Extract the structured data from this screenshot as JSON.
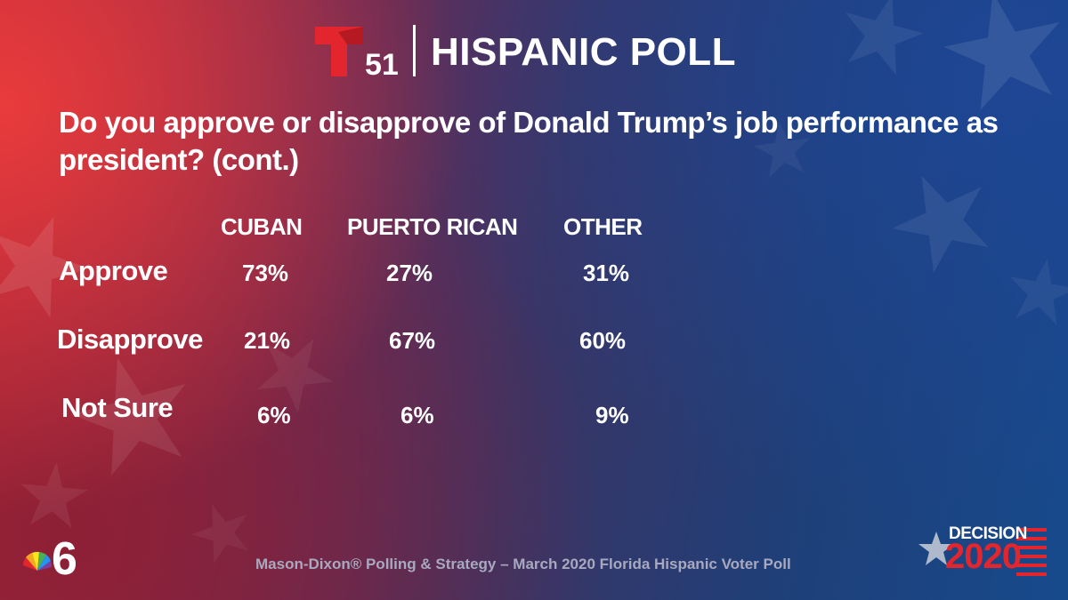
{
  "brand": {
    "channel_number": "51",
    "title": "HISPANIC POLL"
  },
  "question": "Do you approve or disapprove of Donald Trump’s job performance as president? (cont.)",
  "chart_data": {
    "type": "table",
    "title": "Do you approve or disapprove of Donald Trump’s job performance as president? (cont.)",
    "columns": [
      "CUBAN",
      "PUERTO RICAN",
      "OTHER"
    ],
    "rows": [
      {
        "label": "Approve",
        "values": [
          "73%",
          "27%",
          "31%"
        ]
      },
      {
        "label": "Disapprove",
        "values": [
          "21%",
          "67%",
          "60%"
        ]
      },
      {
        "label": "Not Sure",
        "values": [
          "6%",
          "6%",
          "9%"
        ]
      }
    ]
  },
  "footer": {
    "source": "Mason-Dixon® Polling & Strategy – March 2020 Florida Hispanic Voter Poll",
    "station_number": "6",
    "decision_word": "DECISION",
    "decision_year": "2020"
  },
  "colors": {
    "red_accent": "#e3262d",
    "white": "#ffffff",
    "source_gray": "#a8a9bf"
  }
}
